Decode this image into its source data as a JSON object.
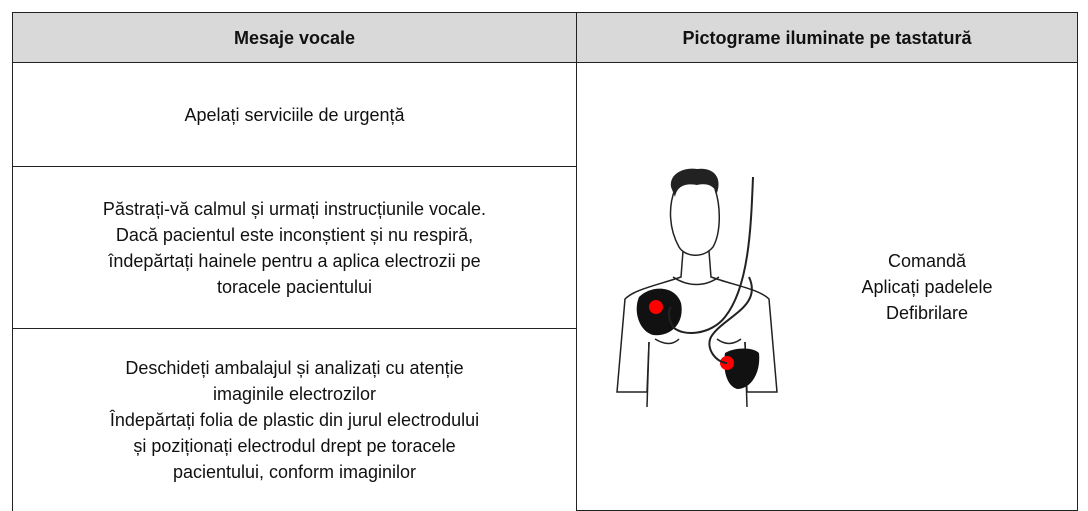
{
  "table": {
    "header": [
      "Mesaje vocale",
      "Pictograme iluminate pe tastatură"
    ],
    "rows": [
      [
        "Apelați serviciile de urgență"
      ],
      [
        "Păstrați-vă calmul și urmați instrucțiunile vocale.",
        "Dacă pacientul este inconștient și nu respiră,",
        "îndepărtați hainele pentru a aplica electrozii pe",
        "toracele pacientului"
      ],
      [
        "Deschideți ambalajul și analizați cu atenție",
        "imaginile electrozilor",
        "Îndepărtați folia de plastic din jurul electrodului",
        "și poziționați electrodul drept pe toracele",
        "pacientului, conform imaginilor"
      ]
    ],
    "pictogram_caption": [
      "Comandă",
      "Aplicați padelele",
      "Defibrilare"
    ]
  }
}
